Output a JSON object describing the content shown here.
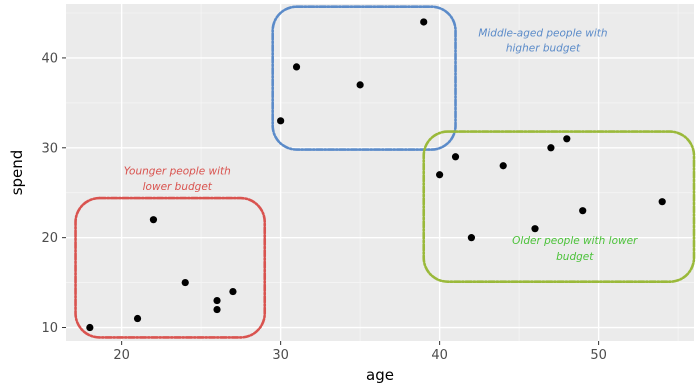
{
  "chart_data": {
    "type": "scatter",
    "title": "",
    "xlabel": "age",
    "ylabel": "spend",
    "xlim": [
      16.5,
      56
    ],
    "ylim": [
      8.5,
      46
    ],
    "x_ticks": [
      20,
      30,
      40,
      50
    ],
    "y_ticks": [
      10,
      20,
      30,
      40
    ],
    "grid": true,
    "background": "#ebebeb",
    "point_color": "#000000",
    "points": [
      {
        "x": 18,
        "y": 10
      },
      {
        "x": 21,
        "y": 11
      },
      {
        "x": 22,
        "y": 22
      },
      {
        "x": 24,
        "y": 15
      },
      {
        "x": 26,
        "y": 13
      },
      {
        "x": 26,
        "y": 12
      },
      {
        "x": 27,
        "y": 14
      },
      {
        "x": 30,
        "y": 33
      },
      {
        "x": 31,
        "y": 39
      },
      {
        "x": 35,
        "y": 37
      },
      {
        "x": 39,
        "y": 44
      },
      {
        "x": 40,
        "y": 27
      },
      {
        "x": 41,
        "y": 29
      },
      {
        "x": 42,
        "y": 20
      },
      {
        "x": 44,
        "y": 28
      },
      {
        "x": 46,
        "y": 21
      },
      {
        "x": 47,
        "y": 30
      },
      {
        "x": 48,
        "y": 31
      },
      {
        "x": 49,
        "y": 23
      },
      {
        "x": 54,
        "y": 24
      }
    ],
    "annotations": [
      {
        "name": "younger-group",
        "color": "#d9534f",
        "label_lines": [
          "Younger people with",
          "lower budget"
        ],
        "box": {
          "x0": 17.1,
          "x1": 29,
          "y0": 8.9,
          "y1": 24.4
        },
        "label_x": 23.5,
        "label_y1": 27,
        "label_y2": 25.3
      },
      {
        "name": "middle-aged-group",
        "color": "#5b8bc9",
        "label_lines": [
          "Middle-aged people with",
          "higher budget"
        ],
        "box": {
          "x0": 29.5,
          "x1": 41,
          "y0": 29.8,
          "y1": 45.7
        },
        "label_x": 46.5,
        "label_y1": 42.4,
        "label_y2": 40.7
      },
      {
        "name": "older-group",
        "color": "#9ab93a",
        "label_lines": [
          "Older people with lower",
          "budget"
        ],
        "box": {
          "x0": 39,
          "x1": 56,
          "y0": 15.1,
          "y1": 31.8
        },
        "label_x": 48.5,
        "label_y1": 19.3,
        "label_y2": 17.5,
        "label_color": "#4cc23a"
      }
    ]
  }
}
